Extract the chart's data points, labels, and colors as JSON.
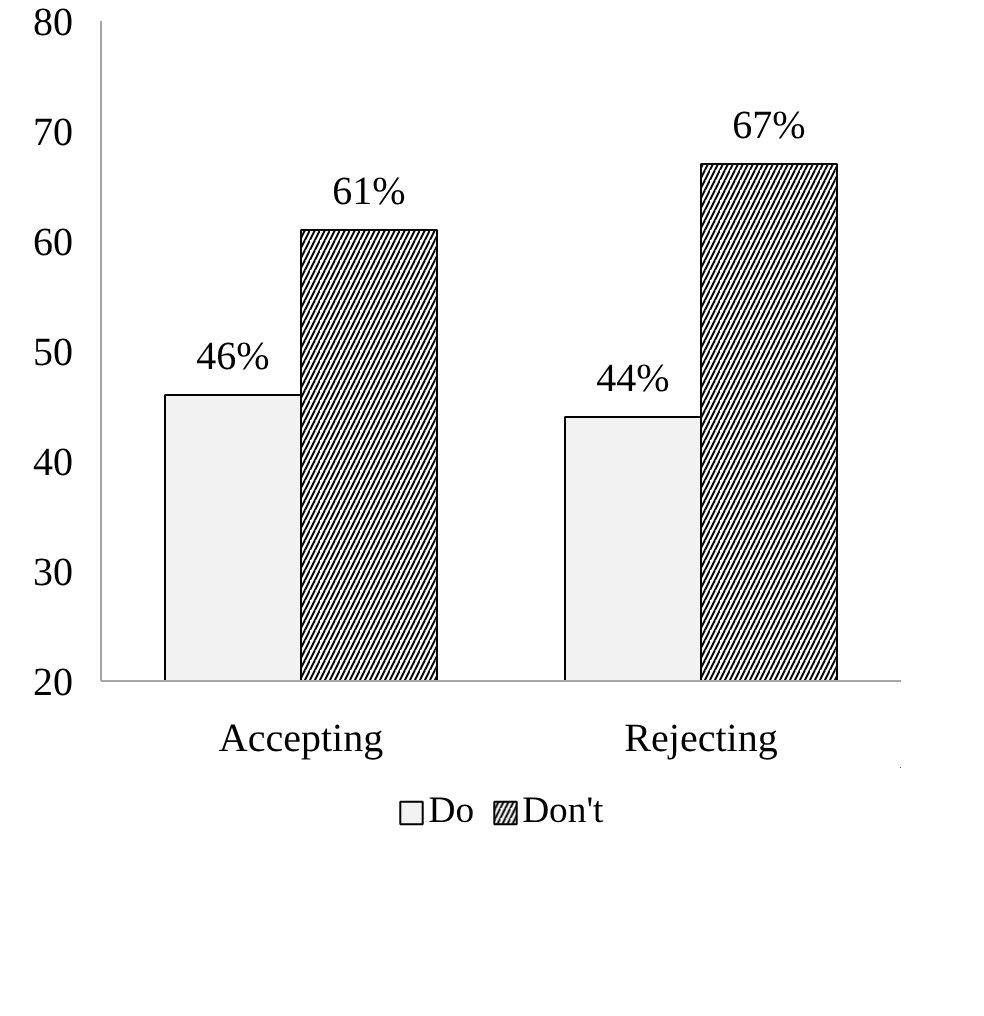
{
  "chart_data": {
    "type": "bar",
    "categories": [
      "Accepting",
      "Rejecting"
    ],
    "series": [
      {
        "name": "Do",
        "color": "#f2f2f2",
        "values": [
          46,
          44
        ],
        "value_labels": [
          "46%",
          "44%"
        ]
      },
      {
        "name": "Don't",
        "color": "#ffffff",
        "values": [
          61,
          67
        ],
        "value_labels": [
          "61%",
          "67%"
        ]
      }
    ],
    "ylim": [
      20,
      80
    ],
    "yticks": [
      20,
      30,
      40,
      50,
      60,
      70,
      80
    ],
    "grid": false,
    "legend": "bottom"
  }
}
